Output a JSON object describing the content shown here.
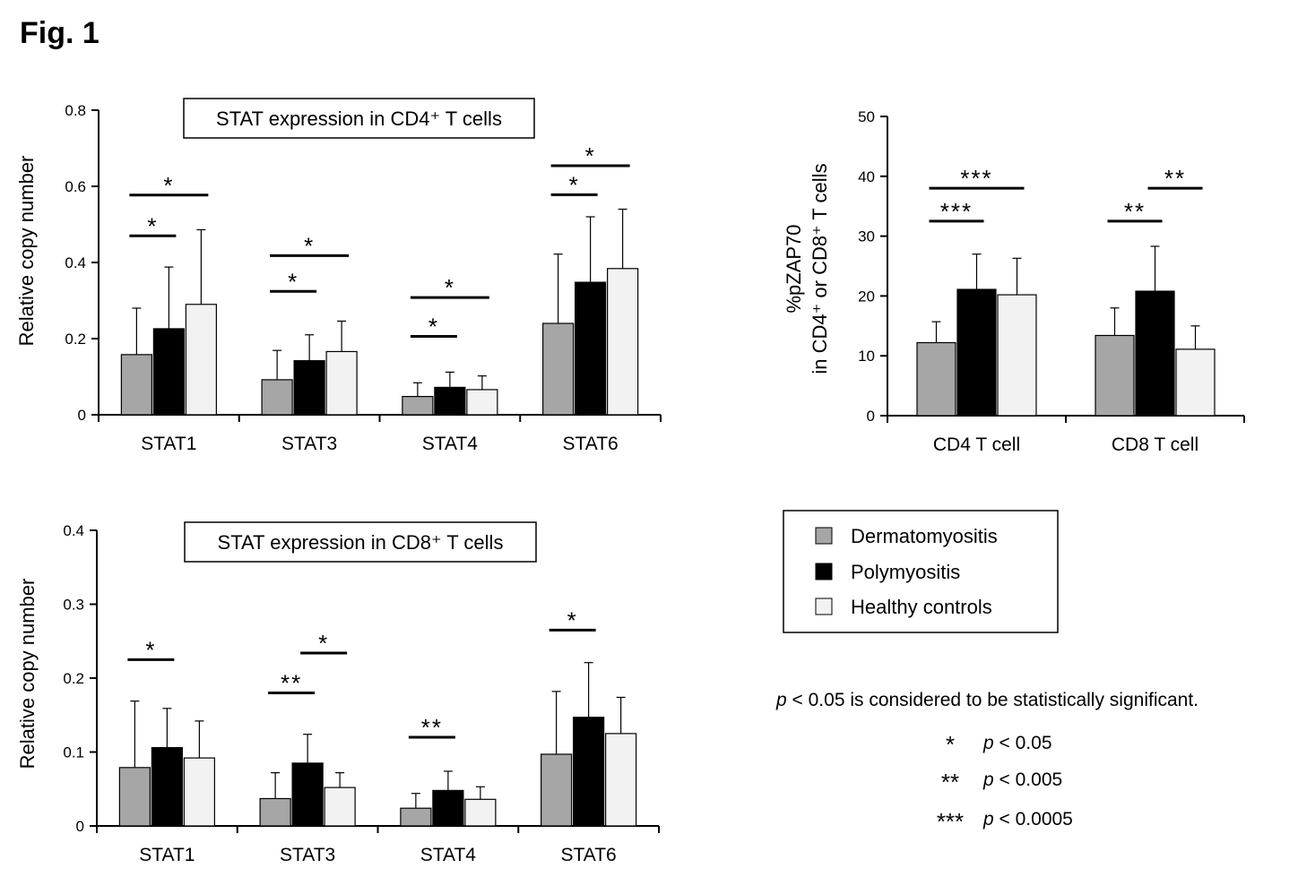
{
  "figure_label": "Fig. 1",
  "colors": {
    "dermatomyositis": "#a6a6a6",
    "polymyositis": "#000000",
    "healthy_controls": "#f2f2f2"
  },
  "legend": {
    "items": [
      "Dermatomyositis",
      "Polymyositis",
      "Healthy controls"
    ]
  },
  "significance_note": {
    "text": "p < 0.05 is considered to be statistically significant.",
    "p_symbol": "p",
    "p_rest": " < 0.05 is considered to be statistically significant.",
    "rows": [
      {
        "symbol": "*",
        "label": "p < 0.05",
        "p": "p",
        "rest": " < 0.05"
      },
      {
        "symbol": "**",
        "label": "p < 0.005",
        "p": "p",
        "rest": " < 0.005"
      },
      {
        "symbol": "***",
        "label": "p < 0.0005",
        "p": "p",
        "rest": " < 0.0005"
      }
    ]
  },
  "chart_data": [
    {
      "id": "cd4-stat",
      "type": "bar",
      "title": "STAT expression in CD4⁺ T cells",
      "ylabel": "Relative copy number",
      "xlabel": "",
      "ylim": [
        0,
        0.8
      ],
      "yticks": [
        "0",
        "0.2",
        "0.4",
        "0.6",
        "0.8"
      ],
      "ytick_values": [
        0,
        0.2,
        0.4,
        0.6,
        0.8
      ],
      "categories": [
        "STAT1",
        "STAT3",
        "STAT4",
        "STAT6"
      ],
      "series": [
        {
          "name": "Dermatomyositis",
          "values": [
            0.158,
            0.092,
            0.048,
            0.24
          ],
          "errors": [
            0.122,
            0.077,
            0.036,
            0.182
          ]
        },
        {
          "name": "Polymyositis",
          "values": [
            0.226,
            0.142,
            0.072,
            0.348
          ],
          "errors": [
            0.162,
            0.068,
            0.04,
            0.172
          ]
        },
        {
          "name": "Healthy controls",
          "values": [
            0.29,
            0.166,
            0.066,
            0.384
          ],
          "errors": [
            0.196,
            0.08,
            0.036,
            0.156
          ]
        }
      ],
      "significance": [
        {
          "category": "STAT1",
          "from": 0,
          "to": 1,
          "label": "*",
          "y": 0.47
        },
        {
          "category": "STAT1",
          "from": 0,
          "to": 2,
          "label": "*",
          "y": 0.577
        },
        {
          "category": "STAT3",
          "from": 0,
          "to": 1,
          "label": "*",
          "y": 0.324
        },
        {
          "category": "STAT3",
          "from": 0,
          "to": 2,
          "label": "*",
          "y": 0.418
        },
        {
          "category": "STAT4",
          "from": 0,
          "to": 1,
          "label": "*",
          "y": 0.206
        },
        {
          "category": "STAT4",
          "from": 0,
          "to": 2,
          "label": "*",
          "y": 0.308
        },
        {
          "category": "STAT6",
          "from": 0,
          "to": 1,
          "label": "*",
          "y": 0.578
        },
        {
          "category": "STAT6",
          "from": 0,
          "to": 2,
          "label": "*",
          "y": 0.654
        }
      ]
    },
    {
      "id": "zap70",
      "type": "bar",
      "title": "",
      "ylabel_lines": [
        "%pZAP70",
        "in CD4⁺ or CD8⁺ T cells"
      ],
      "xlabel": "",
      "ylim": [
        0,
        50
      ],
      "yticks": [
        "0",
        "10",
        "20",
        "30",
        "40",
        "50"
      ],
      "ytick_values": [
        0,
        10,
        20,
        30,
        40,
        50
      ],
      "categories": [
        "CD4 T cell",
        "CD8 T cell"
      ],
      "series": [
        {
          "name": "Dermatomyositis",
          "values": [
            12.2,
            13.4
          ],
          "errors": [
            3.5,
            4.6
          ]
        },
        {
          "name": "Polymyositis",
          "values": [
            21.1,
            20.8
          ],
          "errors": [
            5.9,
            7.5
          ]
        },
        {
          "name": "Healthy controls",
          "values": [
            20.2,
            11.1
          ],
          "errors": [
            6.1,
            3.9
          ]
        }
      ],
      "significance": [
        {
          "category": "CD4 T cell",
          "from": 0,
          "to": 1,
          "label": "***",
          "y": 32.5
        },
        {
          "category": "CD4 T cell",
          "from": 0,
          "to": 2,
          "label": "***",
          "y": 38
        },
        {
          "category": "CD8 T cell",
          "from": 0,
          "to": 1,
          "label": "**",
          "y": 32.5
        },
        {
          "category": "CD8 T cell",
          "from": 1,
          "to": 2,
          "label": "**",
          "y": 38
        }
      ]
    },
    {
      "id": "cd8-stat",
      "type": "bar",
      "title": "STAT expression in CD8⁺ T cells",
      "ylabel": "Relative copy number",
      "xlabel": "",
      "ylim": [
        0,
        0.4
      ],
      "yticks": [
        "0",
        "0.1",
        "0.2",
        "0.3",
        "0.4"
      ],
      "ytick_values": [
        0,
        0.1,
        0.2,
        0.3,
        0.4
      ],
      "categories": [
        "STAT1",
        "STAT3",
        "STAT4",
        "STAT6"
      ],
      "series": [
        {
          "name": "Dermatomyositis",
          "values": [
            0.079,
            0.037,
            0.024,
            0.097
          ],
          "errors": [
            0.09,
            0.035,
            0.02,
            0.085
          ]
        },
        {
          "name": "Polymyositis",
          "values": [
            0.106,
            0.085,
            0.048,
            0.147
          ],
          "errors": [
            0.053,
            0.039,
            0.026,
            0.074
          ]
        },
        {
          "name": "Healthy controls",
          "values": [
            0.092,
            0.052,
            0.036,
            0.125
          ],
          "errors": [
            0.05,
            0.02,
            0.017,
            0.049
          ]
        }
      ],
      "significance": [
        {
          "category": "STAT1",
          "from": 0,
          "to": 1,
          "label": "*",
          "y": 0.225
        },
        {
          "category": "STAT3",
          "from": 0,
          "to": 1,
          "label": "**",
          "y": 0.18
        },
        {
          "category": "STAT3",
          "from": 1,
          "to": 2,
          "label": "*",
          "y": 0.234
        },
        {
          "category": "STAT4",
          "from": 0,
          "to": 1,
          "label": "**",
          "y": 0.12
        },
        {
          "category": "STAT6",
          "from": 0,
          "to": 1,
          "label": "*",
          "y": 0.265
        }
      ]
    }
  ]
}
